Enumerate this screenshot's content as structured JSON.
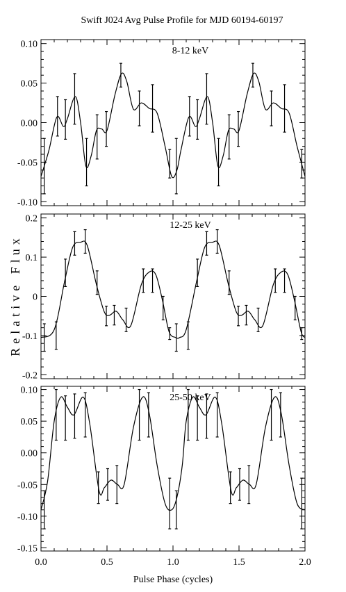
{
  "figure": {
    "title": "Swift J024 Avg Pulse Profile for MJD 60194-60197",
    "xlabel": "Pulse Phase (cycles)",
    "ylabel": "Relative Flux"
  },
  "chart_data": [
    {
      "type": "line",
      "panel_label": "8-12 keV",
      "xlim": [
        0.0,
        2.0
      ],
      "ylim": [
        -0.105,
        0.105
      ],
      "x_ticks": [
        0.0,
        0.5,
        1.0,
        1.5,
        2.0
      ],
      "x_tick_labels": [
        "0.0",
        "0.5",
        "1.0",
        "1.5",
        "2.0"
      ],
      "show_x_tick_labels": false,
      "y_ticks": [
        -0.1,
        -0.05,
        0.0,
        0.05,
        0.1
      ],
      "y_tick_labels": [
        "-0.10",
        "-0.05",
        "0.00",
        "0.05",
        "0.10"
      ],
      "points": {
        "x": [
          0.025,
          0.125,
          0.185,
          0.255,
          0.345,
          0.425,
          0.495,
          0.605,
          0.745,
          0.845,
          0.975,
          1.025,
          1.125,
          1.185,
          1.255,
          1.345,
          1.425,
          1.495,
          1.605,
          1.745,
          1.845,
          1.975
        ],
        "y": [
          -0.055,
          0.008,
          0.004,
          0.03,
          -0.05,
          -0.018,
          -0.008,
          0.06,
          0.018,
          0.018,
          -0.052,
          -0.055,
          0.008,
          0.004,
          0.03,
          -0.05,
          -0.018,
          -0.008,
          0.06,
          0.018,
          0.018,
          -0.052
        ],
        "err": [
          0.035,
          0.025,
          0.025,
          0.032,
          0.03,
          0.028,
          0.022,
          0.015,
          0.022,
          0.03,
          0.018,
          0.035,
          0.025,
          0.025,
          0.032,
          0.03,
          0.028,
          0.022,
          0.015,
          0.022,
          0.03,
          0.018
        ]
      },
      "curve": {
        "x": [
          0.0,
          0.06,
          0.12,
          0.17,
          0.2,
          0.26,
          0.3,
          0.34,
          0.38,
          0.42,
          0.46,
          0.5,
          0.56,
          0.61,
          0.65,
          0.7,
          0.76,
          0.82,
          0.88,
          0.94,
          0.99,
          1.03,
          1.06,
          1.12,
          1.17,
          1.2,
          1.26,
          1.3,
          1.34,
          1.38,
          1.42,
          1.46,
          1.5,
          1.56,
          1.61,
          1.65,
          1.7,
          1.76,
          1.82,
          1.88,
          1.94,
          2.0
        ],
        "y": [
          -0.068,
          -0.035,
          0.007,
          -0.005,
          0.005,
          0.033,
          0.0,
          -0.055,
          -0.042,
          -0.01,
          -0.008,
          -0.01,
          0.035,
          0.062,
          0.052,
          0.017,
          0.025,
          0.018,
          0.012,
          -0.03,
          -0.068,
          -0.06,
          -0.035,
          0.007,
          -0.005,
          0.005,
          0.033,
          0.0,
          -0.055,
          -0.042,
          -0.01,
          -0.008,
          -0.01,
          0.035,
          0.062,
          0.052,
          0.017,
          0.025,
          0.018,
          0.012,
          -0.03,
          -0.068
        ]
      }
    },
    {
      "type": "line",
      "panel_label": "12-25 keV",
      "xlim": [
        0.0,
        2.0
      ],
      "ylim": [
        -0.21,
        0.21
      ],
      "x_ticks": [
        0.0,
        0.5,
        1.0,
        1.5,
        2.0
      ],
      "x_tick_labels": [
        "0.0",
        "0.5",
        "1.0",
        "1.5",
        "2.0"
      ],
      "show_x_tick_labels": false,
      "y_ticks": [
        -0.2,
        -0.1,
        0.0,
        0.1,
        0.2
      ],
      "y_tick_labels": [
        "-0.2",
        "-0.1",
        "0",
        "0.1",
        "0.2"
      ],
      "points": {
        "x": [
          0.025,
          0.115,
          0.185,
          0.255,
          0.335,
          0.425,
          0.495,
          0.555,
          0.645,
          0.775,
          0.845,
          0.925,
          0.975,
          1.025,
          1.115,
          1.185,
          1.255,
          1.335,
          1.425,
          1.495,
          1.555,
          1.645,
          1.775,
          1.845,
          1.925,
          1.975
        ],
        "y": [
          -0.105,
          -0.1,
          0.06,
          0.135,
          0.14,
          0.035,
          -0.05,
          -0.048,
          -0.06,
          0.04,
          0.04,
          -0.03,
          -0.095,
          -0.105,
          -0.1,
          0.06,
          0.135,
          0.14,
          0.035,
          -0.05,
          -0.048,
          -0.06,
          0.04,
          0.04,
          -0.03,
          -0.095
        ],
        "err": [
          0.035,
          0.035,
          0.035,
          0.03,
          0.03,
          0.03,
          0.025,
          0.025,
          0.03,
          0.03,
          0.03,
          0.03,
          0.015,
          0.035,
          0.035,
          0.035,
          0.03,
          0.03,
          0.03,
          0.025,
          0.025,
          0.03,
          0.03,
          0.03,
          0.03,
          0.015
        ]
      },
      "curve": {
        "x": [
          0.0,
          0.1,
          0.18,
          0.24,
          0.3,
          0.35,
          0.42,
          0.48,
          0.52,
          0.57,
          0.62,
          0.68,
          0.76,
          0.82,
          0.87,
          0.92,
          0.97,
          1.02,
          1.05,
          1.1,
          1.18,
          1.24,
          1.3,
          1.35,
          1.42,
          1.48,
          1.52,
          1.57,
          1.62,
          1.68,
          1.76,
          1.82,
          1.87,
          1.92,
          1.97,
          2.0
        ],
        "y": [
          -0.105,
          -0.085,
          0.04,
          0.125,
          0.138,
          0.13,
          0.03,
          -0.04,
          -0.048,
          -0.038,
          -0.06,
          -0.075,
          0.03,
          0.062,
          0.055,
          -0.01,
          -0.09,
          -0.105,
          -0.105,
          -0.085,
          0.04,
          0.125,
          0.138,
          0.13,
          0.03,
          -0.04,
          -0.048,
          -0.038,
          -0.06,
          -0.075,
          0.03,
          0.062,
          0.055,
          -0.01,
          -0.09,
          -0.105
        ]
      }
    },
    {
      "type": "line",
      "panel_label": "25-50 keV",
      "xlim": [
        0.0,
        2.0
      ],
      "ylim": [
        -0.155,
        0.105
      ],
      "x_ticks": [
        0.0,
        0.5,
        1.0,
        1.5,
        2.0
      ],
      "x_tick_labels": [
        "0.0",
        "0.5",
        "1.0",
        "1.5",
        "2.0"
      ],
      "show_x_tick_labels": true,
      "y_ticks": [
        -0.15,
        -0.1,
        -0.05,
        0.0,
        0.05,
        0.1
      ],
      "y_tick_labels": [
        "-0.15",
        "-0.10",
        "-0.05",
        "0.00",
        "0.05",
        "0.10"
      ],
      "points": {
        "x": [
          0.025,
          0.115,
          0.185,
          0.255,
          0.335,
          0.435,
          0.505,
          0.575,
          0.745,
          0.815,
          0.975,
          1.025,
          1.115,
          1.185,
          1.255,
          1.335,
          1.435,
          1.505,
          1.575,
          1.745,
          1.815,
          1.975
        ],
        "y": [
          -0.09,
          0.06,
          0.055,
          0.058,
          0.06,
          -0.055,
          -0.05,
          -0.05,
          0.06,
          0.06,
          -0.08,
          -0.09,
          0.06,
          0.055,
          0.058,
          0.06,
          -0.055,
          -0.05,
          -0.05,
          0.06,
          0.06,
          -0.08
        ],
        "err": [
          0.03,
          0.04,
          0.035,
          0.035,
          0.035,
          0.025,
          0.025,
          0.03,
          0.04,
          0.035,
          0.04,
          0.03,
          0.04,
          0.035,
          0.035,
          0.035,
          0.025,
          0.025,
          0.03,
          0.04,
          0.035,
          0.04
        ]
      },
      "curve": {
        "x": [
          0.0,
          0.05,
          0.1,
          0.15,
          0.2,
          0.25,
          0.32,
          0.37,
          0.44,
          0.48,
          0.53,
          0.58,
          0.63,
          0.7,
          0.77,
          0.82,
          0.88,
          0.94,
          0.99,
          1.03,
          1.07,
          1.1,
          1.15,
          1.2,
          1.25,
          1.32,
          1.37,
          1.44,
          1.48,
          1.53,
          1.58,
          1.63,
          1.7,
          1.77,
          1.82,
          1.88,
          1.94,
          2.0
        ],
        "y": [
          -0.09,
          -0.045,
          0.05,
          0.088,
          0.072,
          0.06,
          0.088,
          0.045,
          -0.06,
          -0.055,
          -0.043,
          -0.05,
          -0.05,
          0.04,
          0.088,
          0.062,
          -0.02,
          -0.08,
          -0.09,
          -0.07,
          -0.02,
          0.05,
          0.088,
          0.072,
          0.06,
          0.088,
          0.045,
          -0.06,
          -0.055,
          -0.043,
          -0.05,
          -0.05,
          0.04,
          0.088,
          0.062,
          -0.02,
          -0.08,
          -0.09
        ]
      }
    }
  ]
}
